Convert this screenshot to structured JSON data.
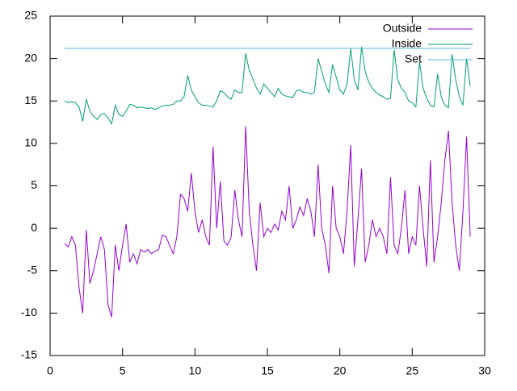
{
  "chart_data": {
    "type": "line",
    "x": [
      1,
      1.25,
      1.5,
      1.75,
      2,
      2.25,
      2.5,
      2.75,
      3,
      3.25,
      3.5,
      3.75,
      4,
      4.25,
      4.5,
      4.75,
      5,
      5.25,
      5.5,
      5.75,
      6,
      6.25,
      6.5,
      6.75,
      7,
      7.25,
      7.5,
      7.75,
      8,
      8.25,
      8.5,
      8.75,
      9,
      9.25,
      9.5,
      9.75,
      10,
      10.25,
      10.5,
      10.75,
      11,
      11.25,
      11.5,
      11.75,
      12,
      12.25,
      12.5,
      12.75,
      13,
      13.25,
      13.5,
      13.75,
      14,
      14.25,
      14.5,
      14.75,
      15,
      15.25,
      15.5,
      15.75,
      16,
      16.25,
      16.5,
      16.75,
      17,
      17.25,
      17.5,
      17.75,
      18,
      18.25,
      18.5,
      18.75,
      19,
      19.25,
      19.5,
      19.75,
      20,
      20.25,
      20.5,
      20.75,
      21,
      21.25,
      21.5,
      21.75,
      22,
      22.25,
      22.5,
      22.75,
      23,
      23.25,
      23.5,
      23.75,
      24,
      24.25,
      24.5,
      24.75,
      25,
      25.25,
      25.5,
      25.75,
      26,
      26.25,
      26.5,
      26.75,
      27,
      27.25,
      27.5,
      27.75,
      28,
      28.25,
      28.5,
      28.75,
      29
    ],
    "series": [
      {
        "name": "Outside",
        "color": "#9400d3",
        "values": [
          -1.8,
          -2.2,
          -1,
          -2,
          -7,
          -10,
          -0.2,
          -6.5,
          -5,
          -3,
          -1,
          -2.5,
          -9,
          -10.5,
          -2,
          -5,
          -2,
          0.5,
          -4,
          -3,
          -4.2,
          -2.5,
          -2.8,
          -2.5,
          -3,
          -2.7,
          -2.5,
          -0.8,
          -1,
          -2,
          -3,
          -1,
          4,
          3.5,
          2,
          6.5,
          2,
          -0.5,
          1,
          -1,
          -2,
          9.6,
          0,
          5.5,
          -1.5,
          -2,
          -1,
          4.5,
          1,
          -1,
          12,
          2,
          -2,
          -5,
          3,
          -1,
          0,
          -0.5,
          0.5,
          -0.2,
          2,
          1,
          5,
          0,
          1,
          2.5,
          1.5,
          3.5,
          2,
          -1,
          7.5,
          0,
          -2,
          -5.3,
          5,
          0,
          -1,
          -3,
          2,
          9.8,
          -4.5,
          1,
          7,
          -4,
          -2,
          1,
          -1,
          0,
          -1,
          -3,
          6,
          -2,
          -3,
          0,
          4.5,
          -3,
          -1,
          -2,
          5,
          0,
          -4.5,
          8,
          -4,
          -1,
          3,
          8,
          11.5,
          3,
          -2,
          -5,
          2,
          10.8,
          -1
        ]
      },
      {
        "name": "Inside",
        "color": "#009e73",
        "values": [
          15,
          14.8,
          14.9,
          14.8,
          14.3,
          12.6,
          15.2,
          13.8,
          13.2,
          12.8,
          13.4,
          13.5,
          13,
          12.3,
          14.5,
          13.4,
          13.2,
          13.8,
          14.6,
          14.5,
          14.2,
          14.3,
          14.2,
          14.1,
          14.2,
          14,
          14.2,
          14.4,
          14.5,
          14.5,
          14.6,
          15,
          15,
          15.5,
          18,
          16.3,
          15.5,
          14.8,
          14.5,
          14.5,
          14.4,
          14.3,
          15,
          16.2,
          16,
          15.5,
          15.2,
          16.3,
          16,
          16,
          20.6,
          18.6,
          17.6,
          16.5,
          15.8,
          17,
          16.5,
          16,
          15.5,
          16.5,
          15.8,
          15.6,
          15.5,
          15.4,
          16.2,
          16.3,
          16,
          16,
          15.8,
          16,
          20,
          18.5,
          17,
          16,
          19.3,
          17.8,
          16.3,
          15.8,
          17,
          21.2,
          17.5,
          16.3,
          21.4,
          18.5,
          17.2,
          16.5,
          16,
          15.7,
          15.5,
          15.2,
          15.3,
          21,
          17.5,
          16.5,
          16,
          15,
          14.8,
          14.3,
          19.6,
          16.5,
          15.3,
          14.5,
          14.3,
          18.2,
          15.5,
          14.5,
          14.2,
          20.5,
          17.5,
          15.5,
          14.5,
          20,
          16.8
        ]
      },
      {
        "name": "Set",
        "color": "#56b4e9",
        "x": [
          1,
          29
        ],
        "values": [
          21.2,
          21.2
        ]
      }
    ],
    "xlim": [
      0,
      30
    ],
    "xticks": [
      0,
      5,
      10,
      15,
      20,
      25,
      30
    ],
    "ylim": [
      -15,
      25
    ],
    "yticks": [
      -15,
      -10,
      -5,
      0,
      5,
      10,
      15,
      20,
      25
    ],
    "legend": "top-right"
  }
}
